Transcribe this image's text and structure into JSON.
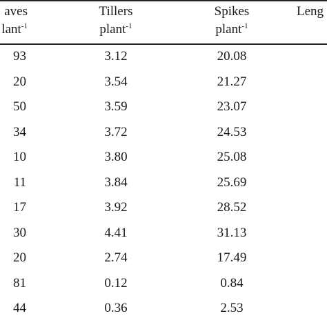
{
  "table": {
    "headers": {
      "leaves_line1": "aves",
      "leaves_line2": "lant",
      "leaves_sup": "-1",
      "tillers_line1": "Tillers",
      "tillers_line2": "plant",
      "tillers_sup": "-1",
      "spikes_line1": "Spikes",
      "spikes_line2": "plant",
      "spikes_sup": "-1",
      "length_line1": "Leng"
    },
    "rows": [
      {
        "leaves": "93",
        "tillers": "3.12",
        "spikes": "20.08"
      },
      {
        "leaves": "20",
        "tillers": "3.54",
        "spikes": "21.27"
      },
      {
        "leaves": "50",
        "tillers": "3.59",
        "spikes": "23.07"
      },
      {
        "leaves": "34",
        "tillers": "3.72",
        "spikes": "24.53"
      },
      {
        "leaves": "10",
        "tillers": "3.80",
        "spikes": "25.08"
      },
      {
        "leaves": "11",
        "tillers": "3.84",
        "spikes": "25.69"
      },
      {
        "leaves": "17",
        "tillers": "3.92",
        "spikes": "28.52"
      },
      {
        "leaves": "30",
        "tillers": "4.41",
        "spikes": "31.13"
      },
      {
        "leaves": "20",
        "tillers": "2.74",
        "spikes": "17.49"
      },
      {
        "leaves": "81",
        "tillers": "0.12",
        "spikes": "0.84"
      },
      {
        "leaves": "44",
        "tillers": "0.36",
        "spikes": "2.53"
      }
    ]
  }
}
